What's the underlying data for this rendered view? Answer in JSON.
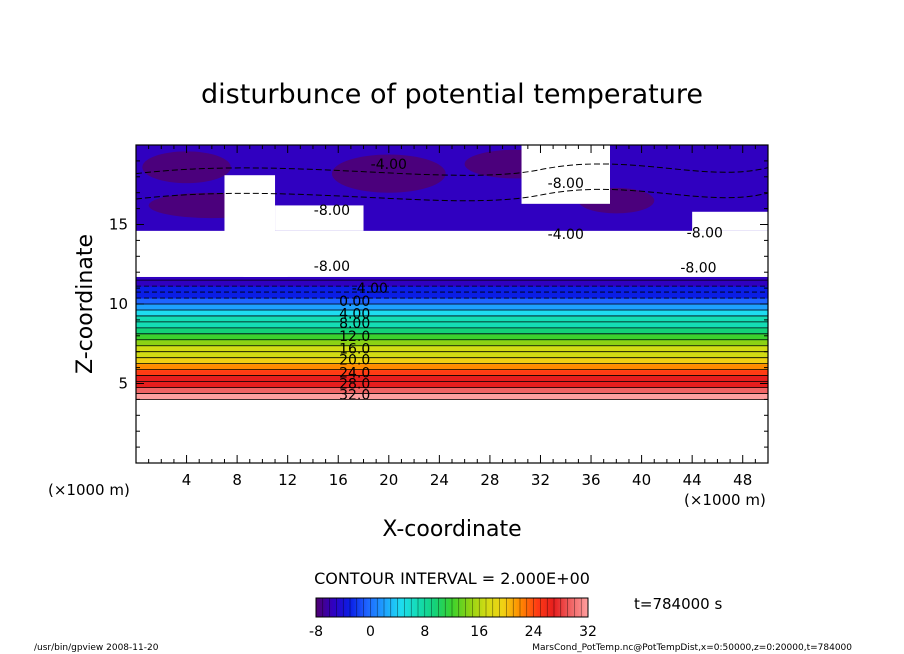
{
  "chart_data": {
    "type": "heatmap",
    "title": "disturbunce of potential temperature",
    "xlabel": "X-coordinate",
    "ylabel": "Z-coordinate",
    "x_unit": "(×1000 m)",
    "z_unit": "(×1000 m)",
    "xlim": [
      0,
      50
    ],
    "ylim": [
      0,
      20
    ],
    "x_ticks": [
      4,
      8,
      12,
      16,
      20,
      24,
      28,
      32,
      36,
      40,
      44,
      48
    ],
    "y_ticks": [
      5,
      10,
      15
    ],
    "contour_interval_label": "CONTOUR INTERVAL = 2.000E+00",
    "time_label": "t=784000 s",
    "colorbar": {
      "min": -8,
      "max": 32,
      "ticks": [
        -8,
        0,
        8,
        16,
        24,
        32
      ],
      "colors": [
        "#500070",
        "#3000c0",
        "#0a1ee6",
        "#1e64ff",
        "#1ea0ff",
        "#1edcf0",
        "#14dcb4",
        "#14d278",
        "#3cd22d",
        "#8cd214",
        "#d2dc14",
        "#f0d214",
        "#ff8c00",
        "#ff3c14",
        "#e61e1e",
        "#f06464",
        "#ffa0a0"
      ]
    },
    "layer_bottom_z": 4.0,
    "layer_top_z": 11.5,
    "gradient_levels": [
      32,
      30,
      28,
      26,
      24,
      22,
      20,
      18,
      16,
      14,
      12,
      10,
      8,
      6,
      4,
      2,
      0,
      -2,
      -4,
      -6
    ],
    "contour_labels": [
      {
        "text": "32.0",
        "x": 17.3,
        "z": 4.3
      },
      {
        "text": "28.0",
        "x": 17.3,
        "z": 5.0
      },
      {
        "text": "24.0",
        "x": 17.3,
        "z": 5.7
      },
      {
        "text": "20.0",
        "x": 17.3,
        "z": 6.5
      },
      {
        "text": "16.0",
        "x": 17.3,
        "z": 7.2
      },
      {
        "text": "12.0",
        "x": 17.3,
        "z": 8.0
      },
      {
        "text": "8.00",
        "x": 17.3,
        "z": 8.8
      },
      {
        "text": "4.00",
        "x": 17.3,
        "z": 9.4
      },
      {
        "text": "0.00",
        "x": 17.3,
        "z": 10.2
      },
      {
        "text": "-4.00",
        "x": 18.5,
        "z": 11.0
      },
      {
        "text": "-8.00",
        "x": 15.5,
        "z": 12.4
      },
      {
        "text": "-8.00",
        "x": 15.5,
        "z": 15.9
      },
      {
        "text": "-4.00",
        "x": 20.0,
        "z": 18.8
      },
      {
        "text": "-8.00",
        "x": 34.0,
        "z": 17.6
      },
      {
        "text": "-4.00",
        "x": 34.0,
        "z": 14.4
      },
      {
        "text": "-8.00",
        "x": 45.0,
        "z": 14.5
      },
      {
        "text": "-8.00",
        "x": 44.5,
        "z": 12.3
      }
    ]
  },
  "footer": {
    "left": "/usr/bin/gpview   2008-11-20",
    "right": "MarsCond_PotTemp.nc@PotTempDist,x=0:50000,z=0:20000,t=784000"
  }
}
